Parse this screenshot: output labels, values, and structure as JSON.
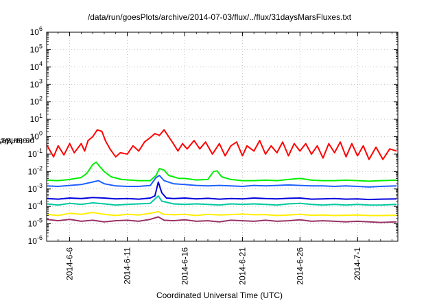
{
  "chart_data": {
    "type": "line",
    "title": "/data/run/goesPlots/archive/2014-07-03/flux/../flux/31daysMarsFluxes.txt",
    "xlabel": "Coordinated Universal Time (UTC)",
    "ylabel_parts": [
      "protons/cm",
      "2",
      "-s-sr-MeV"
    ],
    "yscale": "log",
    "ylim": [
      1e-06,
      1000000.0
    ],
    "y_ticks": [
      {
        "base": "10",
        "exp": "6"
      },
      {
        "base": "10",
        "exp": "5"
      },
      {
        "base": "10",
        "exp": "4"
      },
      {
        "base": "10",
        "exp": "3"
      },
      {
        "base": "10",
        "exp": "2"
      },
      {
        "base": "10",
        "exp": "1"
      },
      {
        "base": "10",
        "exp": "0"
      },
      {
        "base": "10",
        "exp": "-1"
      },
      {
        "base": "10",
        "exp": "-2"
      },
      {
        "base": "10",
        "exp": "-3"
      },
      {
        "base": "10",
        "exp": "-4"
      },
      {
        "base": "10",
        "exp": "-5"
      },
      {
        "base": "10",
        "exp": "-6"
      }
    ],
    "x_range_days": [
      0,
      30.5
    ],
    "x_ticks": [
      {
        "label": "2014-6-6",
        "day": 2
      },
      {
        "label": "2014-6-11",
        "day": 7
      },
      {
        "label": "2014-6-16",
        "day": 12
      },
      {
        "label": "2014-6-21",
        "day": 17
      },
      {
        "label": "2014-6-26",
        "day": 22
      },
      {
        "label": "2014-7-1",
        "day": 27
      }
    ],
    "grid": true,
    "series": [
      {
        "color": "#ff0000",
        "points": [
          [
            0,
            0.35
          ],
          [
            0.6,
            0.07
          ],
          [
            1,
            0.3
          ],
          [
            1.5,
            0.09
          ],
          [
            2,
            0.4
          ],
          [
            2.4,
            0.12
          ],
          [
            3,
            0.4
          ],
          [
            3.3,
            0.15
          ],
          [
            3.6,
            0.6
          ],
          [
            4,
            1.0
          ],
          [
            4.4,
            2.5
          ],
          [
            4.8,
            2.0
          ],
          [
            5.1,
            0.6
          ],
          [
            5.5,
            0.2
          ],
          [
            6,
            0.07
          ],
          [
            6.4,
            0.12
          ],
          [
            7,
            0.1
          ],
          [
            7.5,
            0.3
          ],
          [
            8,
            0.15
          ],
          [
            8.5,
            0.5
          ],
          [
            9,
            0.9
          ],
          [
            9.4,
            1.5
          ],
          [
            9.8,
            1.2
          ],
          [
            10.2,
            2.5
          ],
          [
            10.6,
            1.0
          ],
          [
            11,
            0.4
          ],
          [
            11.4,
            0.15
          ],
          [
            11.8,
            0.4
          ],
          [
            12.2,
            0.2
          ],
          [
            12.8,
            0.6
          ],
          [
            13.3,
            0.2
          ],
          [
            13.8,
            0.5
          ],
          [
            14.4,
            0.1
          ],
          [
            15,
            0.4
          ],
          [
            15.5,
            0.08
          ],
          [
            16,
            0.3
          ],
          [
            16.5,
            0.5
          ],
          [
            17,
            0.08
          ],
          [
            17.4,
            0.3
          ],
          [
            18,
            0.15
          ],
          [
            18.5,
            0.6
          ],
          [
            19,
            0.1
          ],
          [
            19.5,
            0.3
          ],
          [
            20,
            0.12
          ],
          [
            20.5,
            0.5
          ],
          [
            21,
            0.08
          ],
          [
            21.5,
            0.4
          ],
          [
            22,
            0.15
          ],
          [
            22.5,
            0.4
          ],
          [
            23,
            0.1
          ],
          [
            23.5,
            0.3
          ],
          [
            24,
            0.06
          ],
          [
            24.5,
            0.4
          ],
          [
            25,
            0.12
          ],
          [
            25.5,
            0.5
          ],
          [
            26,
            0.07
          ],
          [
            26.5,
            0.4
          ],
          [
            27,
            0.08
          ],
          [
            27.5,
            0.3
          ],
          [
            28,
            0.05
          ],
          [
            28.6,
            0.25
          ],
          [
            29.2,
            0.05
          ],
          [
            29.8,
            0.2
          ],
          [
            30.4,
            0.15
          ]
        ]
      },
      {
        "color": "#00ee00",
        "points": [
          [
            0,
            0.0032
          ],
          [
            1,
            0.003
          ],
          [
            2,
            0.0035
          ],
          [
            3,
            0.0045
          ],
          [
            3.5,
            0.008
          ],
          [
            4,
            0.025
          ],
          [
            4.3,
            0.035
          ],
          [
            4.6,
            0.02
          ],
          [
            5,
            0.01
          ],
          [
            5.6,
            0.005
          ],
          [
            6.5,
            0.0035
          ],
          [
            8,
            0.003
          ],
          [
            9,
            0.003
          ],
          [
            9.5,
            0.006
          ],
          [
            9.8,
            0.015
          ],
          [
            10.2,
            0.012
          ],
          [
            10.6,
            0.006
          ],
          [
            11,
            0.005
          ],
          [
            11.5,
            0.004
          ],
          [
            12,
            0.004
          ],
          [
            13,
            0.0033
          ],
          [
            14,
            0.0035
          ],
          [
            14.5,
            0.01
          ],
          [
            14.8,
            0.011
          ],
          [
            15.2,
            0.005
          ],
          [
            16,
            0.0035
          ],
          [
            17,
            0.003
          ],
          [
            18,
            0.003
          ],
          [
            19,
            0.0032
          ],
          [
            20,
            0.003
          ],
          [
            21,
            0.0035
          ],
          [
            22,
            0.004
          ],
          [
            23,
            0.0032
          ],
          [
            24,
            0.003
          ],
          [
            25,
            0.003
          ],
          [
            26,
            0.0032
          ],
          [
            27,
            0.003
          ],
          [
            28,
            0.0028
          ],
          [
            29,
            0.003
          ],
          [
            30.4,
            0.0032
          ]
        ]
      },
      {
        "color": "#1e60ff",
        "points": [
          [
            0,
            0.0015
          ],
          [
            1,
            0.0014
          ],
          [
            2,
            0.0016
          ],
          [
            3,
            0.0018
          ],
          [
            4,
            0.0025
          ],
          [
            4.5,
            0.003
          ],
          [
            5,
            0.002
          ],
          [
            6,
            0.0015
          ],
          [
            7,
            0.0014
          ],
          [
            8,
            0.0014
          ],
          [
            9,
            0.0016
          ],
          [
            9.5,
            0.0045
          ],
          [
            9.8,
            0.006
          ],
          [
            10.2,
            0.003
          ],
          [
            11,
            0.002
          ],
          [
            12,
            0.0018
          ],
          [
            13,
            0.0016
          ],
          [
            14,
            0.0015
          ],
          [
            15,
            0.0016
          ],
          [
            16,
            0.0015
          ],
          [
            17,
            0.0014
          ],
          [
            18,
            0.0016
          ],
          [
            19,
            0.0015
          ],
          [
            20,
            0.0016
          ],
          [
            21,
            0.0017
          ],
          [
            22,
            0.0016
          ],
          [
            23,
            0.0015
          ],
          [
            24,
            0.0015
          ],
          [
            25,
            0.0014
          ],
          [
            26,
            0.0015
          ],
          [
            27,
            0.0014
          ],
          [
            28,
            0.0013
          ],
          [
            29,
            0.0014
          ],
          [
            30.4,
            0.0015
          ]
        ]
      },
      {
        "color": "#0000dd",
        "points": [
          [
            0,
            0.00028
          ],
          [
            1,
            0.00026
          ],
          [
            2,
            0.0003
          ],
          [
            3,
            0.00028
          ],
          [
            4,
            0.00032
          ],
          [
            5,
            0.0003
          ],
          [
            6,
            0.00027
          ],
          [
            7,
            0.00028
          ],
          [
            8,
            0.00026
          ],
          [
            9,
            0.0003
          ],
          [
            9.4,
            0.0004
          ],
          [
            9.7,
            0.0025
          ],
          [
            10,
            0.0006
          ],
          [
            10.4,
            0.0003
          ],
          [
            11,
            0.00028
          ],
          [
            12,
            0.0003
          ],
          [
            13,
            0.00027
          ],
          [
            14,
            0.00029
          ],
          [
            15,
            0.00026
          ],
          [
            16,
            0.00028
          ],
          [
            17,
            0.00027
          ],
          [
            18,
            0.0003
          ],
          [
            19,
            0.00028
          ],
          [
            20,
            0.00027
          ],
          [
            21,
            0.00029
          ],
          [
            22,
            0.0003
          ],
          [
            23,
            0.00026
          ],
          [
            24,
            0.00027
          ],
          [
            25,
            0.00028
          ],
          [
            26,
            0.00026
          ],
          [
            27,
            0.00027
          ],
          [
            28,
            0.00025
          ],
          [
            29,
            0.00026
          ],
          [
            30.4,
            0.00027
          ]
        ]
      },
      {
        "color": "#00c8a0",
        "points": [
          [
            0,
            0.00014
          ],
          [
            1,
            0.00012
          ],
          [
            2,
            0.00015
          ],
          [
            3,
            0.00013
          ],
          [
            4,
            0.00016
          ],
          [
            5,
            0.00014
          ],
          [
            6,
            0.00012
          ],
          [
            7,
            0.00013
          ],
          [
            8,
            0.00014
          ],
          [
            9,
            0.00015
          ],
          [
            9.7,
            0.0004
          ],
          [
            10,
            0.0002
          ],
          [
            11,
            0.00014
          ],
          [
            12,
            0.00013
          ],
          [
            13,
            0.00014
          ],
          [
            14,
            0.00013
          ],
          [
            15,
            0.00012
          ],
          [
            16,
            0.00014
          ],
          [
            17,
            0.00013
          ],
          [
            18,
            0.00014
          ],
          [
            19,
            0.00013
          ],
          [
            20,
            0.00012
          ],
          [
            21,
            0.00014
          ],
          [
            22,
            0.00015
          ],
          [
            23,
            0.00013
          ],
          [
            24,
            0.00012
          ],
          [
            25,
            0.00013
          ],
          [
            26,
            0.00012
          ],
          [
            27,
            0.00013
          ],
          [
            28,
            0.00012
          ],
          [
            29,
            0.00012
          ],
          [
            30.4,
            0.00013
          ]
        ]
      },
      {
        "color": "#ffee00",
        "points": [
          [
            0,
            3.5e-05
          ],
          [
            1,
            3e-05
          ],
          [
            2,
            4e-05
          ],
          [
            3,
            3.5e-05
          ],
          [
            4,
            4.5e-05
          ],
          [
            5,
            3.5e-05
          ],
          [
            6,
            3e-05
          ],
          [
            7,
            3.5e-05
          ],
          [
            8,
            3.2e-05
          ],
          [
            9,
            4e-05
          ],
          [
            9.7,
            5e-05
          ],
          [
            10.2,
            3.5e-05
          ],
          [
            11,
            3.3e-05
          ],
          [
            12,
            3.5e-05
          ],
          [
            13,
            3e-05
          ],
          [
            14,
            3.5e-05
          ],
          [
            15,
            3.2e-05
          ],
          [
            16,
            3.4e-05
          ],
          [
            17,
            3.6e-05
          ],
          [
            18,
            3.3e-05
          ],
          [
            19,
            3.4e-05
          ],
          [
            20,
            3e-05
          ],
          [
            21,
            3.2e-05
          ],
          [
            22,
            3.5e-05
          ],
          [
            23,
            3.1e-05
          ],
          [
            24,
            3.2e-05
          ],
          [
            25,
            3e-05
          ],
          [
            26,
            3.1e-05
          ],
          [
            27,
            3.2e-05
          ],
          [
            28,
            3e-05
          ],
          [
            29,
            3e-05
          ],
          [
            30.4,
            3.1e-05
          ]
        ]
      },
      {
        "color": "#993366",
        "points": [
          [
            0,
            1.8e-05
          ],
          [
            1,
            1.5e-05
          ],
          [
            2,
            1.8e-05
          ],
          [
            3,
            1.4e-05
          ],
          [
            4,
            1.6e-05
          ],
          [
            5,
            1.3e-05
          ],
          [
            6,
            1.5e-05
          ],
          [
            7,
            1.6e-05
          ],
          [
            8,
            1.4e-05
          ],
          [
            9,
            1.8e-05
          ],
          [
            9.7,
            2.5e-05
          ],
          [
            10.2,
            1.6e-05
          ],
          [
            11,
            1.5e-05
          ],
          [
            12,
            1.7e-05
          ],
          [
            13,
            1.4e-05
          ],
          [
            14,
            1.5e-05
          ],
          [
            15,
            1.3e-05
          ],
          [
            16,
            1.6e-05
          ],
          [
            17,
            1.5e-05
          ],
          [
            18,
            1.4e-05
          ],
          [
            19,
            1.6e-05
          ],
          [
            20,
            1.4e-05
          ],
          [
            21,
            1.5e-05
          ],
          [
            22,
            1.7e-05
          ],
          [
            23,
            1.4e-05
          ],
          [
            24,
            1.5e-05
          ],
          [
            25,
            1.4e-05
          ],
          [
            26,
            1.3e-05
          ],
          [
            27,
            1.4e-05
          ],
          [
            28,
            1.3e-05
          ],
          [
            29,
            1.2e-05
          ],
          [
            30.4,
            1.3e-05
          ]
        ]
      }
    ]
  }
}
